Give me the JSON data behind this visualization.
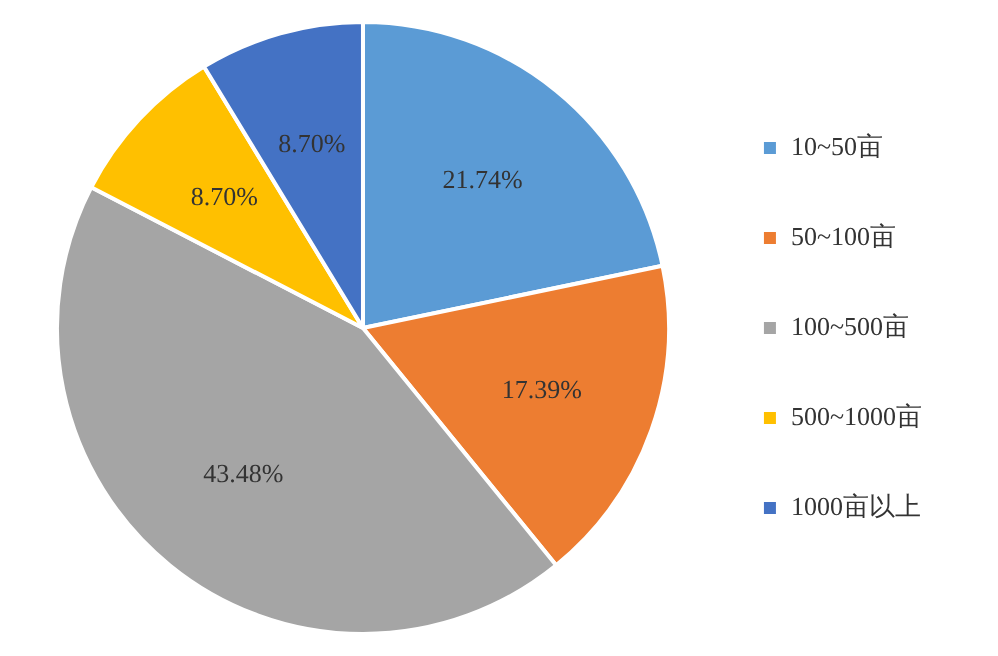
{
  "chart_data": {
    "type": "pie",
    "categories": [
      "10~50亩",
      "50~100亩",
      "100~500亩",
      "500~1000亩",
      "1000亩以上"
    ],
    "values": [
      21.74,
      17.39,
      43.48,
      8.7,
      8.7
    ],
    "value_labels": [
      "21.74%",
      "17.39%",
      "43.48%",
      "8.70%",
      "8.70%"
    ],
    "colors": [
      "#5b9bd5",
      "#ed7d31",
      "#a5a5a5",
      "#ffc000",
      "#4472c4"
    ],
    "legend": "right"
  }
}
